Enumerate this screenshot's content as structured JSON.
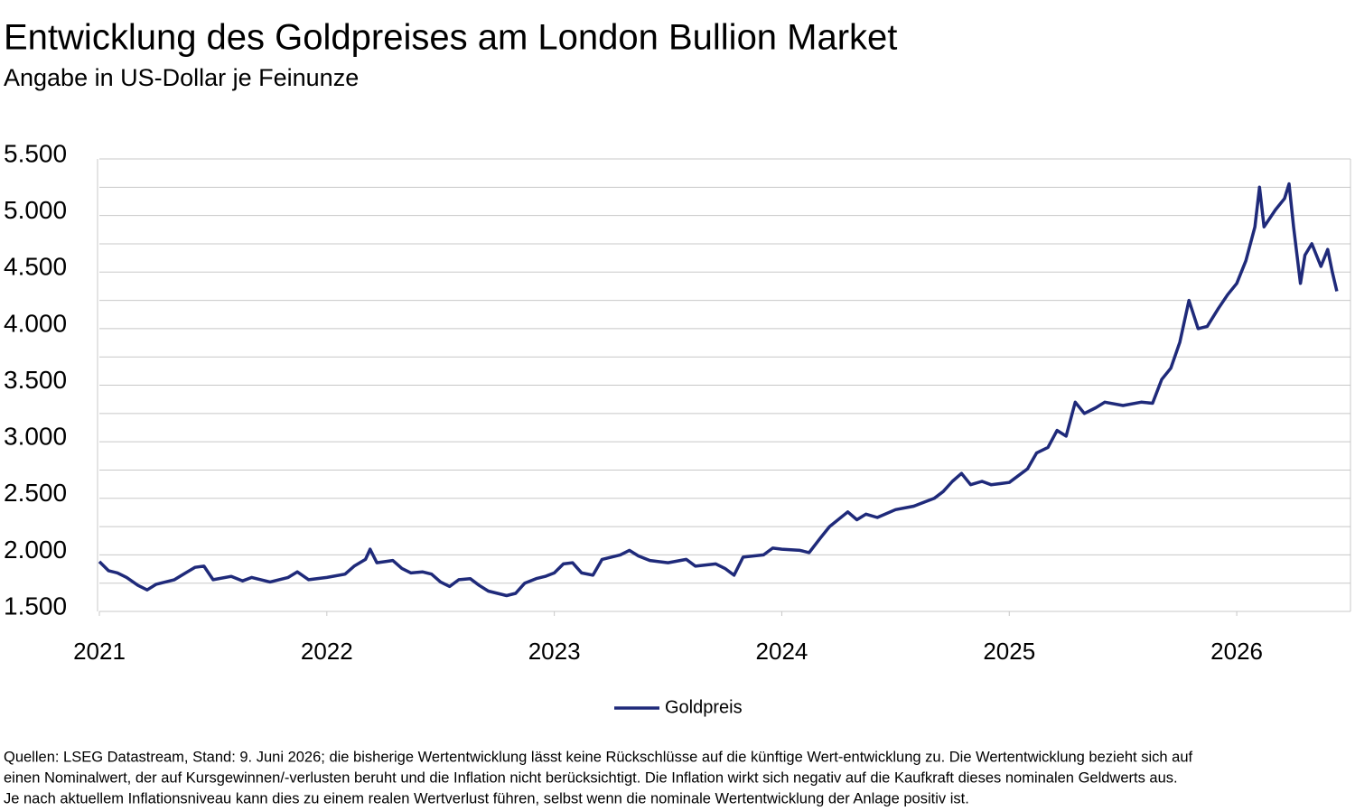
{
  "chart_data": {
    "type": "line",
    "title": "Entwicklung des Goldpreises am London Bullion Market",
    "subtitle": "Angabe in US-Dollar je Feinunze",
    "x": [
      2021.0,
      2021.04,
      2021.08,
      2021.12,
      2021.17,
      2021.21,
      2021.25,
      2021.33,
      2021.37,
      2021.42,
      2021.46,
      2021.5,
      2021.58,
      2021.63,
      2021.67,
      2021.75,
      2021.79,
      2021.83,
      2021.87,
      2021.92,
      2022.0,
      2022.08,
      2022.12,
      2022.17,
      2022.19,
      2022.22,
      2022.29,
      2022.33,
      2022.37,
      2022.42,
      2022.46,
      2022.5,
      2022.54,
      2022.58,
      2022.63,
      2022.67,
      2022.71,
      2022.75,
      2022.79,
      2022.83,
      2022.87,
      2022.92,
      2022.96,
      2023.0,
      2023.04,
      2023.08,
      2023.12,
      2023.17,
      2023.21,
      2023.29,
      2023.33,
      2023.37,
      2023.42,
      2023.5,
      2023.58,
      2023.62,
      2023.71,
      2023.75,
      2023.79,
      2023.83,
      2023.92,
      2023.96,
      2024.0,
      2024.08,
      2024.12,
      2024.17,
      2024.21,
      2024.29,
      2024.33,
      2024.37,
      2024.42,
      2024.5,
      2024.58,
      2024.67,
      2024.71,
      2024.75,
      2024.79,
      2024.83,
      2024.88,
      2024.92,
      2024.96,
      2025.0,
      2025.08,
      2025.12,
      2025.17,
      2025.21,
      2025.25,
      2025.29,
      2025.33,
      2025.38,
      2025.42,
      2025.5,
      2025.58,
      2025.63,
      2025.67,
      2025.71,
      2025.75,
      2025.79,
      2025.83,
      2025.87,
      2025.92,
      2025.96,
      2026.0,
      2026.04,
      2026.08,
      2026.1,
      2026.12,
      2026.17,
      2026.21,
      2026.23,
      2026.25,
      2026.28,
      2026.3,
      2026.33,
      2026.37,
      2026.4,
      2026.42,
      2026.44
    ],
    "series": [
      {
        "name": "Goldpreis",
        "color": "#1f2a7a",
        "values": [
          1940,
          1860,
          1840,
          1800,
          1730,
          1690,
          1740,
          1780,
          1830,
          1890,
          1900,
          1780,
          1810,
          1770,
          1800,
          1760,
          1780,
          1800,
          1850,
          1780,
          1800,
          1830,
          1900,
          1960,
          2050,
          1930,
          1950,
          1880,
          1840,
          1850,
          1830,
          1760,
          1720,
          1780,
          1790,
          1730,
          1680,
          1660,
          1640,
          1660,
          1750,
          1790,
          1810,
          1840,
          1920,
          1930,
          1840,
          1820,
          1960,
          2000,
          2040,
          1990,
          1950,
          1930,
          1960,
          1900,
          1920,
          1880,
          1820,
          1980,
          2000,
          2060,
          2050,
          2040,
          2020,
          2150,
          2250,
          2380,
          2310,
          2360,
          2330,
          2400,
          2430,
          2500,
          2560,
          2650,
          2720,
          2620,
          2650,
          2620,
          2630,
          2640,
          2760,
          2900,
          2950,
          3100,
          3050,
          3350,
          3250,
          3300,
          3350,
          3320,
          3350,
          3340,
          3550,
          3650,
          3880,
          4250,
          4000,
          4020,
          4180,
          4300,
          4400,
          4600,
          4900,
          5250,
          4900,
          5050,
          5150,
          5280,
          4900,
          4400,
          4650,
          4750,
          4550,
          4700,
          4500,
          4330
        ]
      }
    ],
    "xlim": [
      2021,
      2026.5
    ],
    "xticks": [
      2021,
      2022,
      2023,
      2024,
      2025,
      2026
    ],
    "ylim": [
      1500,
      5500
    ],
    "yticks": [
      {
        "value": 1500,
        "label": "1.500"
      },
      {
        "value": 2000,
        "label": "2.000"
      },
      {
        "value": 2500,
        "label": "2.500"
      },
      {
        "value": 3000,
        "label": "3.000"
      },
      {
        "value": 3500,
        "label": "3.500"
      },
      {
        "value": 4000,
        "label": "4.000"
      },
      {
        "value": 4500,
        "label": "4.500"
      },
      {
        "value": 5000,
        "label": "5.000"
      },
      {
        "value": 5500,
        "label": "5.500"
      }
    ],
    "yminor": [
      1750,
      2250,
      2750,
      3250,
      3750,
      4250,
      4750,
      5250
    ],
    "grid": true,
    "legend": "bottom",
    "footnote": [
      "Quellen: LSEG Datastream, Stand: 9. Juni 2026; die bisherige Wertentwicklung lässt keine Rückschlüsse auf die künftige Wert-entwicklung zu. Die Wertentwicklung bezieht sich auf",
      "einen Nominalwert, der auf Kursgewinnen/-verlusten beruht und die Inflation nicht berücksichtigt. Die Inflation wirkt sich negativ auf die Kaufkraft dieses nominalen Geldwerts aus.",
      "Je nach aktuellem Inflationsniveau kann dies zu einem realen Wertverlust führen, selbst wenn die nominale Wertentwicklung der Anlage positiv ist."
    ]
  }
}
